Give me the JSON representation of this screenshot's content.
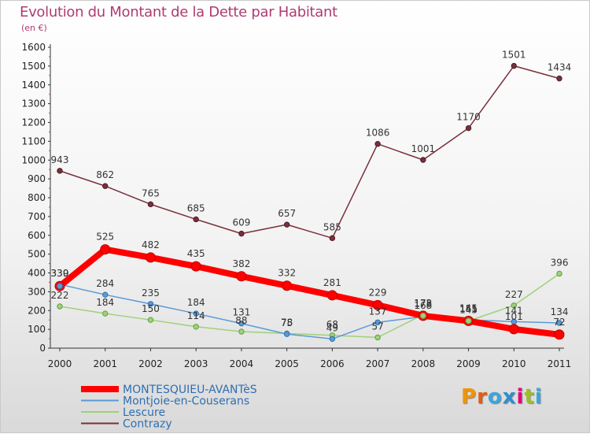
{
  "title": "Evolution du Montant de la Dette par Habitant",
  "unit": "(en €)",
  "brand": {
    "text": "Proxiti",
    "colors": [
      "#f29400",
      "#e45c11",
      "#3aa6dd",
      "#2f8ed0",
      "#e2007a",
      "#9bbf2a",
      "#3aa6dd"
    ]
  },
  "chart_data": {
    "type": "line",
    "title": "Evolution du Montant de la Dette par Habitant",
    "ylabel": "(en €)",
    "xlabel": "",
    "ylim": [
      0,
      1600
    ],
    "yticks": [
      0,
      100,
      200,
      300,
      400,
      500,
      600,
      700,
      800,
      900,
      1000,
      1100,
      1200,
      1300,
      1400,
      1500,
      1600
    ],
    "categories": [
      "2000",
      "2001",
      "2002",
      "2003",
      "2004",
      "2005",
      "2006",
      "2007",
      "2008",
      "2009",
      "2010",
      "2011"
    ],
    "grid": false,
    "legend_position": "bottom-left",
    "series": [
      {
        "name": "Contrazy",
        "color": "#7a2f3b",
        "values": [
          943,
          862,
          765,
          685,
          609,
          657,
          585,
          1086,
          1001,
          1170,
          1501,
          1434
        ]
      },
      {
        "name": "Lescure",
        "color": "#9fd07a",
        "values": [
          222,
          184,
          150,
          114,
          88,
          78,
          68,
          57,
          178,
          145,
          227,
          396
        ],
        "labels": [
          "222",
          "184",
          "150",
          "114",
          "88",
          "78",
          "68",
          "57",
          "178",
          "145",
          "227",
          "396"
        ]
      },
      {
        "name": "Montjoie-en-Couserans",
        "color": "#5b9bd5",
        "values": [
          339,
          284,
          235,
          184,
          131,
          75,
          49,
          137,
          168,
          151,
          141,
          134
        ],
        "labels": [
          "339",
          "284",
          "235",
          "184",
          "131",
          "75",
          "49",
          "137",
          "168",
          "151",
          "141",
          "134"
        ]
      },
      {
        "name": "MONTESQUIEU-AVANTèS",
        "color": "#ff0000",
        "values": [
          330,
          525,
          482,
          435,
          382,
          332,
          281,
          229,
          172,
          145,
          101,
          72
        ],
        "labels": [
          "330",
          "525",
          "482",
          "435",
          "382",
          "332",
          "281",
          "229",
          "172",
          "145",
          "101",
          "72"
        ]
      }
    ],
    "legend": [
      {
        "name": "MONTESQUIEU-AVANTèS",
        "color": "#ff0000"
      },
      {
        "name": "Montjoie-en-Couserans",
        "color": "#5b9bd5"
      },
      {
        "name": "Lescure",
        "color": "#9fd07a"
      },
      {
        "name": "Contrazy",
        "color": "#7a2f3b"
      }
    ]
  }
}
